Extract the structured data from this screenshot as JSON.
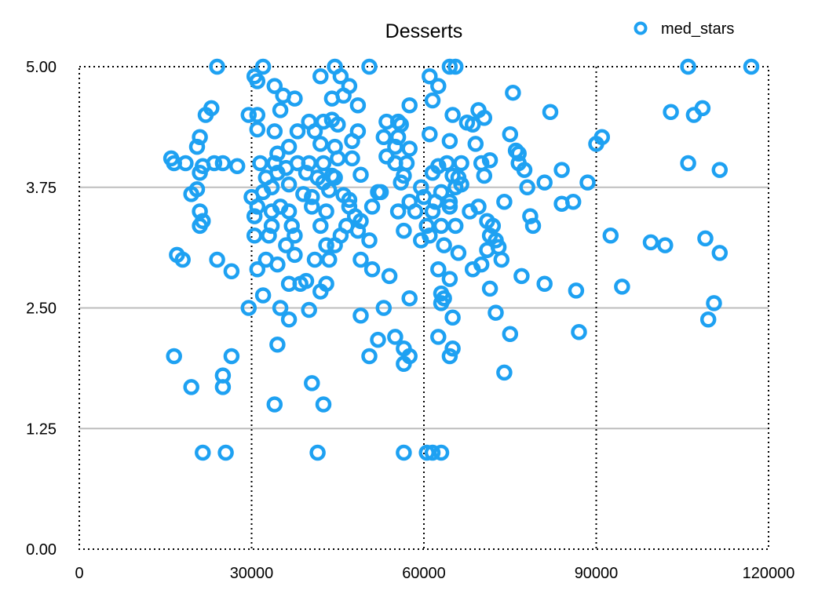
{
  "chart_data": {
    "type": "scatter",
    "title": "Desserts",
    "xlabel": "",
    "ylabel": "",
    "xlim": [
      0,
      120000
    ],
    "ylim": [
      0,
      5
    ],
    "x_ticks": [
      "0",
      "30000",
      "60000",
      "90000",
      "120000"
    ],
    "y_ticks": [
      "0.00",
      "1.25",
      "2.50",
      "3.75",
      "5.00"
    ],
    "legend_position": "top-right",
    "grid": "horizontal solid gridlines at 1.25, 2.50, 3.75; vertical dotted gridlines at 30000, 60000, 90000",
    "colors": {
      "marker": "#1ea1f2",
      "grid": "#bdbdbd",
      "frame": "#000000"
    },
    "series": [
      {
        "name": "med_stars",
        "points": [
          [
            24000,
            5.0
          ],
          [
            32000,
            5.0
          ],
          [
            44500,
            5.0
          ],
          [
            50500,
            5.0
          ],
          [
            64500,
            5.0
          ],
          [
            65500,
            5.0
          ],
          [
            106000,
            5.0
          ],
          [
            117000,
            5.0
          ],
          [
            30500,
            4.9
          ],
          [
            31000,
            4.85
          ],
          [
            42000,
            4.9
          ],
          [
            45500,
            4.9
          ],
          [
            61000,
            4.9
          ],
          [
            34000,
            4.8
          ],
          [
            47000,
            4.8
          ],
          [
            62500,
            4.8
          ],
          [
            35500,
            4.7
          ],
          [
            37500,
            4.67
          ],
          [
            44000,
            4.67
          ],
          [
            46000,
            4.7
          ],
          [
            75500,
            4.73
          ],
          [
            23000,
            4.57
          ],
          [
            22000,
            4.5
          ],
          [
            29500,
            4.5
          ],
          [
            31000,
            4.5
          ],
          [
            35000,
            4.55
          ],
          [
            48500,
            4.6
          ],
          [
            57500,
            4.6
          ],
          [
            61500,
            4.65
          ],
          [
            69500,
            4.55
          ],
          [
            82000,
            4.53
          ],
          [
            103000,
            4.53
          ],
          [
            107000,
            4.5
          ],
          [
            108500,
            4.57
          ],
          [
            40000,
            4.43
          ],
          [
            42500,
            4.43
          ],
          [
            44000,
            4.45
          ],
          [
            45000,
            4.4
          ],
          [
            53500,
            4.43
          ],
          [
            55500,
            4.43
          ],
          [
            56000,
            4.4
          ],
          [
            65000,
            4.5
          ],
          [
            67500,
            4.42
          ],
          [
            70500,
            4.47
          ],
          [
            31000,
            4.35
          ],
          [
            34000,
            4.33
          ],
          [
            38000,
            4.33
          ],
          [
            41000,
            4.33
          ],
          [
            48500,
            4.33
          ],
          [
            53000,
            4.27
          ],
          [
            55500,
            4.27
          ],
          [
            61000,
            4.3
          ],
          [
            68500,
            4.4
          ],
          [
            75000,
            4.3
          ],
          [
            21000,
            4.27
          ],
          [
            20500,
            4.17
          ],
          [
            34500,
            4.1
          ],
          [
            36500,
            4.17
          ],
          [
            42000,
            4.2
          ],
          [
            44500,
            4.17
          ],
          [
            47500,
            4.23
          ],
          [
            55000,
            4.17
          ],
          [
            57500,
            4.15
          ],
          [
            64500,
            4.23
          ],
          [
            69000,
            4.2
          ],
          [
            76000,
            4.13
          ],
          [
            76500,
            4.1
          ],
          [
            91000,
            4.27
          ],
          [
            90000,
            4.2
          ],
          [
            16000,
            4.05
          ],
          [
            16500,
            4.0
          ],
          [
            18500,
            4.0
          ],
          [
            21500,
            3.97
          ],
          [
            23500,
            4.0
          ],
          [
            25000,
            4.0
          ],
          [
            27500,
            3.97
          ],
          [
            31500,
            4.0
          ],
          [
            34000,
            4.0
          ],
          [
            36000,
            3.95
          ],
          [
            38000,
            4.0
          ],
          [
            40000,
            4.0
          ],
          [
            42500,
            4.0
          ],
          [
            45000,
            4.05
          ],
          [
            47500,
            4.05
          ],
          [
            53500,
            4.07
          ],
          [
            55000,
            4.0
          ],
          [
            57000,
            4.0
          ],
          [
            62500,
            3.97
          ],
          [
            64000,
            4.0
          ],
          [
            66500,
            4.0
          ],
          [
            70000,
            4.0
          ],
          [
            71500,
            4.03
          ],
          [
            76500,
            4.0
          ],
          [
            106000,
            4.0
          ],
          [
            77500,
            3.93
          ],
          [
            84000,
            3.93
          ],
          [
            111500,
            3.93
          ],
          [
            21000,
            3.9
          ],
          [
            32500,
            3.85
          ],
          [
            34500,
            3.9
          ],
          [
            39500,
            3.9
          ],
          [
            41500,
            3.85
          ],
          [
            44000,
            3.87
          ],
          [
            44500,
            3.85
          ],
          [
            49000,
            3.88
          ],
          [
            56500,
            3.87
          ],
          [
            61500,
            3.9
          ],
          [
            65000,
            3.87
          ],
          [
            66000,
            3.85
          ],
          [
            70500,
            3.87
          ],
          [
            36500,
            3.78
          ],
          [
            42500,
            3.8
          ],
          [
            52500,
            3.7
          ],
          [
            56000,
            3.8
          ],
          [
            59500,
            3.75
          ],
          [
            63000,
            3.7
          ],
          [
            65500,
            3.75
          ],
          [
            66500,
            3.78
          ],
          [
            78000,
            3.75
          ],
          [
            81000,
            3.8
          ],
          [
            88500,
            3.8
          ],
          [
            20500,
            3.73
          ],
          [
            19500,
            3.68
          ],
          [
            30000,
            3.65
          ],
          [
            32000,
            3.7
          ],
          [
            33500,
            3.75
          ],
          [
            39000,
            3.68
          ],
          [
            40500,
            3.65
          ],
          [
            43500,
            3.72
          ],
          [
            46000,
            3.67
          ],
          [
            47000,
            3.62
          ],
          [
            52000,
            3.7
          ],
          [
            57500,
            3.6
          ],
          [
            60000,
            3.65
          ],
          [
            62000,
            3.6
          ],
          [
            64500,
            3.6
          ],
          [
            69500,
            3.55
          ],
          [
            74000,
            3.6
          ],
          [
            84000,
            3.58
          ],
          [
            86000,
            3.6
          ],
          [
            21000,
            3.5
          ],
          [
            31000,
            3.55
          ],
          [
            33500,
            3.5
          ],
          [
            35000,
            3.55
          ],
          [
            36500,
            3.5
          ],
          [
            40500,
            3.55
          ],
          [
            43000,
            3.5
          ],
          [
            47000,
            3.55
          ],
          [
            51000,
            3.55
          ],
          [
            55500,
            3.5
          ],
          [
            58500,
            3.5
          ],
          [
            61500,
            3.5
          ],
          [
            64500,
            3.55
          ],
          [
            68000,
            3.5
          ],
          [
            30500,
            3.45
          ],
          [
            48000,
            3.45
          ],
          [
            78500,
            3.45
          ],
          [
            21500,
            3.4
          ],
          [
            21000,
            3.35
          ],
          [
            33500,
            3.35
          ],
          [
            37000,
            3.35
          ],
          [
            42000,
            3.35
          ],
          [
            46500,
            3.35
          ],
          [
            49000,
            3.4
          ],
          [
            56500,
            3.3
          ],
          [
            60500,
            3.35
          ],
          [
            63000,
            3.35
          ],
          [
            65500,
            3.35
          ],
          [
            71000,
            3.4
          ],
          [
            72000,
            3.35
          ],
          [
            79000,
            3.35
          ],
          [
            30500,
            3.25
          ],
          [
            33000,
            3.25
          ],
          [
            37500,
            3.25
          ],
          [
            45500,
            3.25
          ],
          [
            48500,
            3.3
          ],
          [
            59500,
            3.2
          ],
          [
            61000,
            3.25
          ],
          [
            71500,
            3.25
          ],
          [
            72500,
            3.2
          ],
          [
            92500,
            3.25
          ],
          [
            99500,
            3.18
          ],
          [
            102000,
            3.15
          ],
          [
            109000,
            3.22
          ],
          [
            36000,
            3.15
          ],
          [
            43000,
            3.15
          ],
          [
            44500,
            3.15
          ],
          [
            50500,
            3.2
          ],
          [
            63500,
            3.15
          ],
          [
            71000,
            3.1
          ],
          [
            73000,
            3.13
          ],
          [
            111500,
            3.07
          ],
          [
            17000,
            3.05
          ],
          [
            18000,
            3.0
          ],
          [
            24000,
            3.0
          ],
          [
            32500,
            3.0
          ],
          [
            37500,
            3.05
          ],
          [
            41000,
            3.0
          ],
          [
            43500,
            3.0
          ],
          [
            49000,
            3.0
          ],
          [
            66000,
            3.07
          ],
          [
            73500,
            3.0
          ],
          [
            26500,
            2.88
          ],
          [
            31000,
            2.9
          ],
          [
            34500,
            2.95
          ],
          [
            51000,
            2.9
          ],
          [
            62500,
            2.9
          ],
          [
            68500,
            2.9
          ],
          [
            70000,
            2.95
          ],
          [
            36500,
            2.75
          ],
          [
            38500,
            2.75
          ],
          [
            39500,
            2.78
          ],
          [
            43000,
            2.75
          ],
          [
            54000,
            2.83
          ],
          [
            64500,
            2.8
          ],
          [
            77000,
            2.83
          ],
          [
            81000,
            2.75
          ],
          [
            32000,
            2.63
          ],
          [
            42000,
            2.67
          ],
          [
            57500,
            2.6
          ],
          [
            63000,
            2.65
          ],
          [
            63500,
            2.6
          ],
          [
            71500,
            2.7
          ],
          [
            86500,
            2.68
          ],
          [
            94500,
            2.72
          ],
          [
            110500,
            2.55
          ],
          [
            29500,
            2.5
          ],
          [
            35000,
            2.5
          ],
          [
            40000,
            2.48
          ],
          [
            53000,
            2.5
          ],
          [
            63000,
            2.55
          ],
          [
            72500,
            2.45
          ],
          [
            36500,
            2.38
          ],
          [
            49000,
            2.42
          ],
          [
            65000,
            2.4
          ],
          [
            109500,
            2.38
          ],
          [
            52000,
            2.17
          ],
          [
            55000,
            2.2
          ],
          [
            62500,
            2.2
          ],
          [
            75000,
            2.23
          ],
          [
            87000,
            2.25
          ],
          [
            34500,
            2.12
          ],
          [
            56500,
            2.08
          ],
          [
            65000,
            2.08
          ],
          [
            16500,
            2.0
          ],
          [
            26500,
            2.0
          ],
          [
            50500,
            2.0
          ],
          [
            57500,
            2.0
          ],
          [
            64500,
            2.0
          ],
          [
            56500,
            1.92
          ],
          [
            74000,
            1.83
          ],
          [
            25000,
            1.8
          ],
          [
            40500,
            1.72
          ],
          [
            19500,
            1.68
          ],
          [
            25000,
            1.68
          ],
          [
            34000,
            1.5
          ],
          [
            42500,
            1.5
          ],
          [
            21500,
            1.0
          ],
          [
            25500,
            1.0
          ],
          [
            41500,
            1.0
          ],
          [
            56500,
            1.0
          ],
          [
            60500,
            1.0
          ],
          [
            61500,
            1.0
          ],
          [
            63000,
            1.0
          ]
        ]
      }
    ]
  }
}
